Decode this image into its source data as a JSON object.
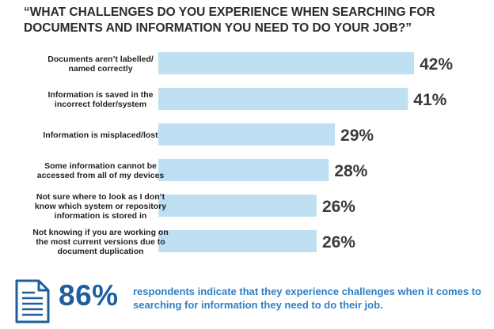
{
  "chart_data": {
    "type": "bar",
    "orientation": "horizontal",
    "title": "“WHAT CHALLENGES DO YOU EXPERIENCE WHEN SEARCHING FOR DOCUMENTS AND INFORMATION YOU NEED TO DO YOUR JOB?”",
    "categories": [
      [
        "Documents aren’t labelled/",
        "named correctly"
      ],
      [
        "Information is saved in the",
        "incorrect folder/system"
      ],
      [
        "Information is misplaced/lost"
      ],
      [
        "Some information cannot be",
        "accessed from all of my devices"
      ],
      [
        "Not sure where to look as I don’t",
        "know which system or repository",
        "information is stored in"
      ],
      [
        "Not knowing if you are working on",
        "the most current versions due to",
        "document duplication"
      ]
    ],
    "values": [
      42,
      41,
      29,
      28,
      26,
      26
    ],
    "value_labels": [
      "42%",
      "41%",
      "29%",
      "28%",
      "26%",
      "26%"
    ],
    "unit": "%",
    "bar_color": "#bfe0f2",
    "grid": false,
    "legend": "none"
  },
  "footer": {
    "stat": "86%",
    "text": "respondents indicate that they experience challenges when it comes to searching for information they need to do their job.",
    "icon": "document-icon",
    "stat_color": "#1f5f9e",
    "text_color": "#2e7fc4"
  }
}
